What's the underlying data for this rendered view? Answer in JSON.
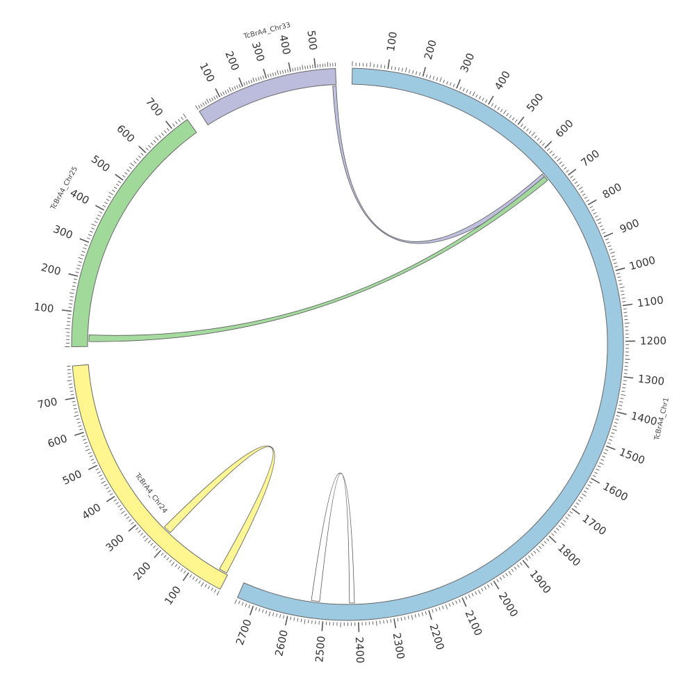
{
  "chart_data": {
    "type": "chord",
    "chromosomes": [
      {
        "name": "TcBrA4_Chr1",
        "length": 2750,
        "color": "#9ecae1",
        "major_ticks": [
          100,
          200,
          300,
          400,
          500,
          600,
          700,
          800,
          900,
          1000,
          1100,
          1200,
          1300,
          1400,
          1500,
          1600,
          1700,
          1800,
          1900,
          2000,
          2100,
          2200,
          2300,
          2400,
          2500,
          2600,
          2700
        ]
      },
      {
        "name": "TcBrA4_Chr24",
        "length": 790,
        "color": "#fff68f",
        "major_ticks": [
          100,
          200,
          300,
          400,
          500,
          600,
          700
        ]
      },
      {
        "name": "TcBrA4_Chr25",
        "length": 750,
        "color": "#a1d99b",
        "major_ticks": [
          100,
          200,
          300,
          400,
          500,
          600,
          700
        ]
      },
      {
        "name": "TcBrA4_Chr33",
        "length": 580,
        "color": "#bcbddc",
        "major_ticks": [
          100,
          200,
          300,
          400,
          500
        ]
      }
    ],
    "links": [
      {
        "source": "TcBrA4_Chr33",
        "source_range": [
          565,
          580
        ],
        "target": "TcBrA4_Chr1",
        "target_range": [
          650,
          670
        ],
        "color": "#bcbddc"
      },
      {
        "source": "TcBrA4_Chr25",
        "source_range": [
          15,
          35
        ],
        "target": "TcBrA4_Chr1",
        "target_range": [
          660,
          675
        ],
        "color": "#a1d99b"
      },
      {
        "source": "TcBrA4_Chr24",
        "source_range": [
          215,
          240
        ],
        "target": "TcBrA4_Chr24",
        "target_range": [
          5,
          30
        ],
        "color": "#fff68f"
      },
      {
        "source": "TcBrA4_Chr1",
        "source_range": [
          2515,
          2540
        ],
        "target": "TcBrA4_Chr1",
        "target_range": [
          2410,
          2425
        ],
        "color": "#ffffff"
      }
    ]
  }
}
